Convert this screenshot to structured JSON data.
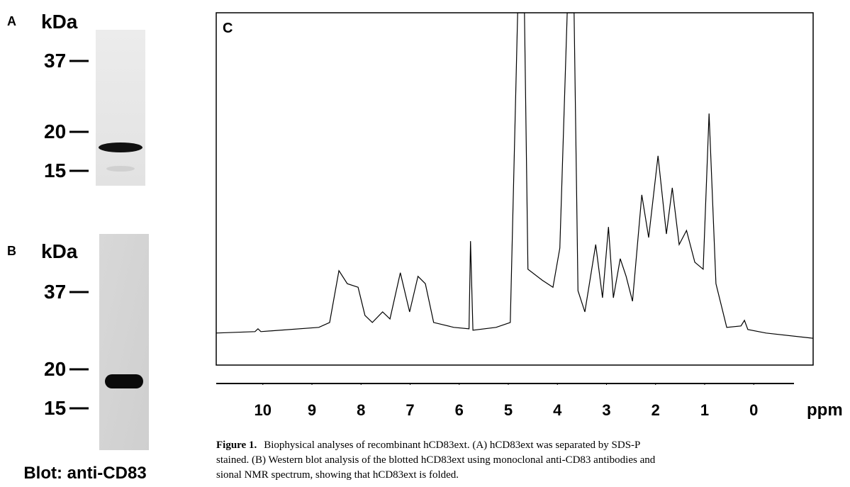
{
  "panel_a": {
    "letter": "A",
    "unit": "kDa",
    "markers": [
      "37",
      "20",
      "15"
    ]
  },
  "panel_b": {
    "letter": "B",
    "unit": "kDa",
    "markers": [
      "37",
      "20",
      "15"
    ],
    "caption": "Blot: anti-CD83"
  },
  "chart_data": {
    "type": "line",
    "panel_label": "C",
    "x_label": "ppm",
    "color": "#000000",
    "x": [
      10.95,
      10.16,
      10.1,
      10.04,
      8.86,
      8.64,
      8.45,
      8.28,
      8.06,
      7.92,
      7.77,
      7.56,
      7.41,
      7.2,
      7.01,
      6.84,
      6.69,
      6.52,
      6.11,
      5.8,
      5.77,
      5.72,
      5.25,
      4.96,
      4.81,
      4.67,
      4.6,
      4.31,
      4.09,
      3.95,
      3.8,
      3.66,
      3.58,
      3.44,
      3.22,
      3.08,
      2.96,
      2.86,
      2.72,
      2.6,
      2.47,
      2.28,
      2.14,
      1.95,
      1.78,
      1.66,
      1.52,
      1.37,
      1.2,
      1.03,
      0.91,
      0.77,
      0.55,
      0.26,
      0.19,
      0.12,
      -0.25,
      -1.21
    ],
    "values": [
      9.1,
      9.5,
      10.3,
      9.5,
      10.7,
      12.1,
      26.8,
      23.1,
      22.1,
      14.1,
      12.1,
      15.1,
      13.1,
      26.2,
      15.1,
      25.2,
      23.1,
      12.1,
      10.7,
      10.3,
      35.2,
      9.9,
      10.7,
      12.1,
      100,
      100,
      27.2,
      24.1,
      22.1,
      33.2,
      100,
      100,
      21.1,
      15.1,
      34.2,
      19.1,
      39.2,
      19.1,
      30.2,
      25.2,
      18.1,
      48.3,
      36.2,
      59.4,
      37.2,
      50.3,
      34.2,
      38.2,
      29.2,
      27.2,
      71.4,
      23.1,
      10.7,
      11.1,
      12.7,
      10.1,
      9.1,
      7.6
    ],
    "xlim": [
      10.95,
      -1.21
    ],
    "ylim": [
      0,
      100
    ],
    "xticks": [
      10,
      9,
      8,
      7,
      6,
      5,
      4,
      3,
      2,
      1,
      0
    ]
  },
  "caption": {
    "label": "Figure 1.",
    "lines": [
      "Biophysical analyses of recombinant hCD83ext. (A) hCD83ext was separated by SDS-P",
      "stained. (B) Western blot analysis of the blotted hCD83ext using monoclonal anti-CD83 antibodies and",
      "sional NMR spectrum, showing that hCD83ext is folded."
    ]
  }
}
